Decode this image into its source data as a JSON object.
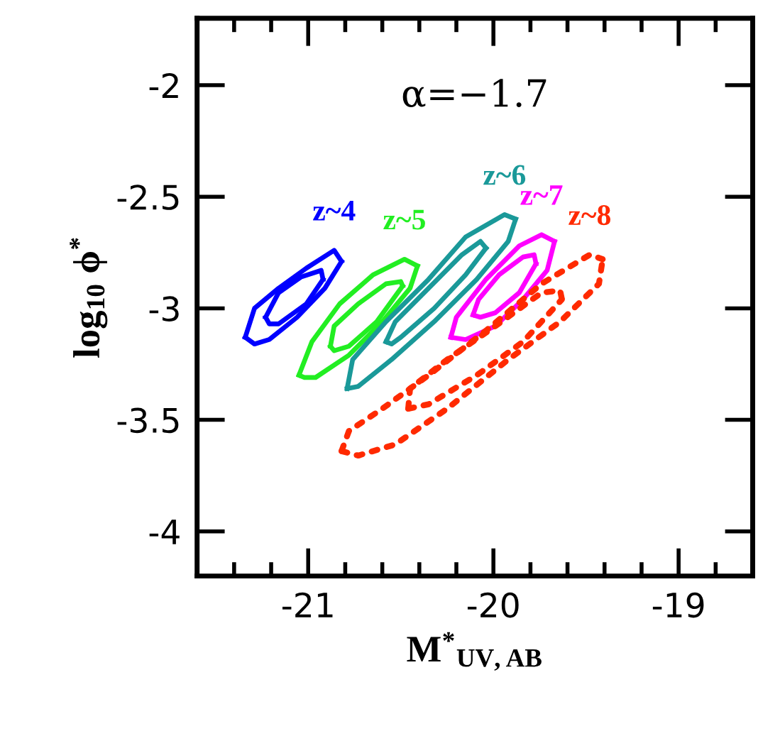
{
  "chart_data": {
    "type": "line",
    "xlabel": "M$^{*}$$_{UV,AB}$",
    "ylabel": "log$_{10}$ ϕ$^{*}$",
    "annotations": [
      "α=−1.7"
    ],
    "xlim": [
      -21.6,
      -18.6
    ],
    "ylim": [
      -4.2,
      -1.7
    ],
    "xticks": [
      {
        "value": -21.4,
        "label": null
      },
      {
        "value": -21.2,
        "label": null
      },
      -21,
      {
        "value": -20.8,
        "label": null
      },
      {
        "value": -20.6,
        "label": null
      },
      {
        "value": -20.4,
        "label": null
      },
      {
        "value": -20.2,
        "label": null
      },
      -20,
      {
        "value": -19.8,
        "label": null
      },
      {
        "value": -19.6,
        "label": null
      },
      {
        "value": -19.4,
        "label": null
      },
      {
        "value": -19.2,
        "label": null
      },
      -19,
      {
        "value": -18.8,
        "label": null
      }
    ],
    "yticks": [
      -4,
      -3.5,
      -3,
      -2.5,
      -2
    ],
    "grid": false,
    "legend": false,
    "marker": "none",
    "series": [
      {
        "name": "z~4",
        "color": "#0000ff",
        "x": [
          -21.34,
          -21.29,
          -21.16,
          -21.01,
          -20.86,
          -20.82
        ],
        "values": [
          -3.13,
          -3.0,
          -2.91,
          -2.82,
          -2.74,
          -2.79
        ]
      },
      {
        "color": "#0000ff",
        "x": [
          -21.34,
          -21.29,
          -21.21,
          -21.06,
          -20.91,
          -20.82
        ],
        "values": [
          -3.13,
          -3.16,
          -3.14,
          -3.04,
          -2.91,
          -2.79
        ]
      },
      {
        "color": "#0000ff",
        "x": [
          -21.23,
          -21.16,
          -21.04,
          -20.93,
          -20.92
        ],
        "values": [
          -3.04,
          -2.93,
          -2.86,
          -2.83,
          -2.87
        ]
      },
      {
        "color": "#0000ff",
        "x": [
          -21.23,
          -21.21,
          -21.16,
          -21.01,
          -20.92
        ],
        "values": [
          -3.04,
          -3.07,
          -3.07,
          -2.98,
          -2.87
        ]
      },
      {
        "name": "z~5",
        "color": "#22ee22",
        "x": [
          -21.05,
          -20.98,
          -20.83,
          -20.65,
          -20.48,
          -20.41
        ],
        "values": [
          -3.3,
          -3.15,
          -2.98,
          -2.85,
          -2.78,
          -2.81
        ]
      },
      {
        "color": "#22ee22",
        "x": [
          -21.05,
          -21.02,
          -20.96,
          -20.78,
          -20.6,
          -20.45,
          -20.41
        ],
        "values": [
          -3.3,
          -3.31,
          -3.31,
          -3.21,
          -3.06,
          -2.91,
          -2.81
        ]
      },
      {
        "color": "#22ee22",
        "x": [
          -20.88,
          -20.86,
          -20.73,
          -20.58,
          -20.5,
          -20.49
        ],
        "values": [
          -3.17,
          -3.08,
          -2.98,
          -2.89,
          -2.88,
          -2.9
        ]
      },
      {
        "color": "#22ee22",
        "x": [
          -20.88,
          -20.86,
          -20.78,
          -20.63,
          -20.49
        ],
        "values": [
          -3.17,
          -3.19,
          -3.17,
          -3.06,
          -2.9
        ]
      },
      {
        "name": "z~6",
        "color": "#1a9999",
        "x": [
          -20.79,
          -20.76,
          -20.58,
          -20.35,
          -20.15,
          -19.94,
          -19.88
        ],
        "values": [
          -3.36,
          -3.23,
          -3.06,
          -2.87,
          -2.68,
          -2.58,
          -2.6
        ]
      },
      {
        "color": "#1a9999",
        "x": [
          -20.79,
          -20.73,
          -20.55,
          -20.32,
          -20.09,
          -19.92,
          -19.88
        ],
        "values": [
          -3.36,
          -3.35,
          -3.23,
          -3.06,
          -2.87,
          -2.7,
          -2.6
        ]
      },
      {
        "color": "#1a9999",
        "x": [
          -20.58,
          -20.53,
          -20.35,
          -20.17,
          -20.07,
          -20.04
        ],
        "values": [
          -3.15,
          -3.06,
          -2.91,
          -2.76,
          -2.7,
          -2.73
        ]
      },
      {
        "color": "#1a9999",
        "x": [
          -20.58,
          -20.55,
          -20.5,
          -20.32,
          -20.15,
          -20.04
        ],
        "values": [
          -3.15,
          -3.16,
          -3.13,
          -3.0,
          -2.85,
          -2.73
        ]
      },
      {
        "name": "z~7",
        "color": "#ff00ff",
        "x": [
          -20.23,
          -20.2,
          -20.04,
          -19.86,
          -19.74,
          -19.67
        ],
        "values": [
          -3.13,
          -3.04,
          -2.87,
          -2.72,
          -2.67,
          -2.7
        ]
      },
      {
        "color": "#ff00ff",
        "x": [
          -20.23,
          -20.15,
          -19.99,
          -19.84,
          -19.71,
          -19.67
        ],
        "values": [
          -3.13,
          -3.14,
          -3.08,
          -2.96,
          -2.83,
          -2.7
        ]
      },
      {
        "color": "#ff00ff",
        "x": [
          -20.11,
          -20.08,
          -19.97,
          -19.84,
          -19.78,
          -19.77
        ],
        "values": [
          -3.03,
          -2.96,
          -2.85,
          -2.77,
          -2.76,
          -2.8
        ]
      },
      {
        "color": "#ff00ff",
        "x": [
          -20.11,
          -20.07,
          -19.99,
          -19.86,
          -19.77
        ],
        "values": [
          -3.03,
          -3.04,
          -3.02,
          -2.93,
          -2.8
        ]
      },
      {
        "name": "z~8",
        "color": "#ff2a00",
        "line_style": "dotted",
        "x": [
          -20.82,
          -20.78,
          -20.6,
          -20.35,
          -20.04,
          -19.74,
          -19.48,
          -19.41
        ],
        "values": [
          -3.64,
          -3.55,
          -3.45,
          -3.3,
          -3.1,
          -2.89,
          -2.76,
          -2.78
        ]
      },
      {
        "color": "#ff2a00",
        "line_style": "dotted",
        "x": [
          -20.82,
          -20.73,
          -20.53,
          -20.25,
          -19.92,
          -19.64,
          -19.43,
          -19.41
        ],
        "values": [
          -3.64,
          -3.66,
          -3.61,
          -3.45,
          -3.23,
          -3.06,
          -2.89,
          -2.78
        ]
      },
      {
        "color": "#ff2a00",
        "line_style": "dotted",
        "x": [
          -20.46,
          -20.45,
          -20.25,
          -19.99,
          -19.74,
          -19.64,
          -19.63
        ],
        "values": [
          -3.45,
          -3.36,
          -3.23,
          -3.08,
          -2.93,
          -2.92,
          -2.96
        ]
      },
      {
        "color": "#ff2a00",
        "line_style": "dotted",
        "x": [
          -20.46,
          -20.35,
          -20.09,
          -19.84,
          -19.63
        ],
        "values": [
          -3.45,
          -3.43,
          -3.3,
          -3.15,
          -2.96
        ]
      }
    ]
  }
}
